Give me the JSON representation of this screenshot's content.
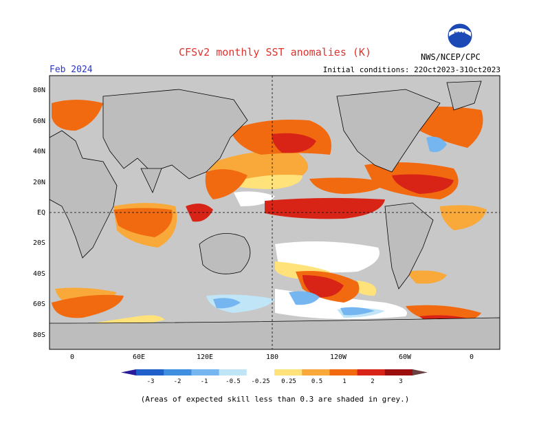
{
  "header": {
    "title": "CFSv2 monthly SST anomalies (K)",
    "month": "Feb 2024",
    "initial_conditions": "Initial conditions: 22Oct2023-31Oct2023",
    "org": "NWS/NCEP/CPC",
    "logo_text": "NOAA"
  },
  "map": {
    "lat_labels": [
      "80N",
      "60N",
      "40N",
      "20N",
      "EQ",
      "20S",
      "40S",
      "60S",
      "80S"
    ],
    "lon_labels": [
      "0",
      "60E",
      "120E",
      "180",
      "120W",
      "60W",
      "0"
    ]
  },
  "colorbar": {
    "ticks": [
      "-3",
      "-2",
      "-1",
      "-0.5",
      "-0.25",
      "0.25",
      "0.5",
      "1",
      "2",
      "3"
    ],
    "colors": [
      "#2a1b9a",
      "#1f5fc9",
      "#3f8fe0",
      "#76b6f0",
      "#bfe5f7",
      "#ffffff",
      "#ffe27a",
      "#f9a93a",
      "#f26a10",
      "#d82416",
      "#9c0d0d",
      "#6b4040"
    ]
  },
  "note": "(Areas of expected skill less than 0.3 are shaded in grey.)",
  "colors": {
    "land": "#bdbdbd",
    "skill_grey": "#c8c8c8",
    "ocean_white": "#ffffff",
    "title_red": "#e0312c",
    "month_blue": "#2a35c9"
  }
}
